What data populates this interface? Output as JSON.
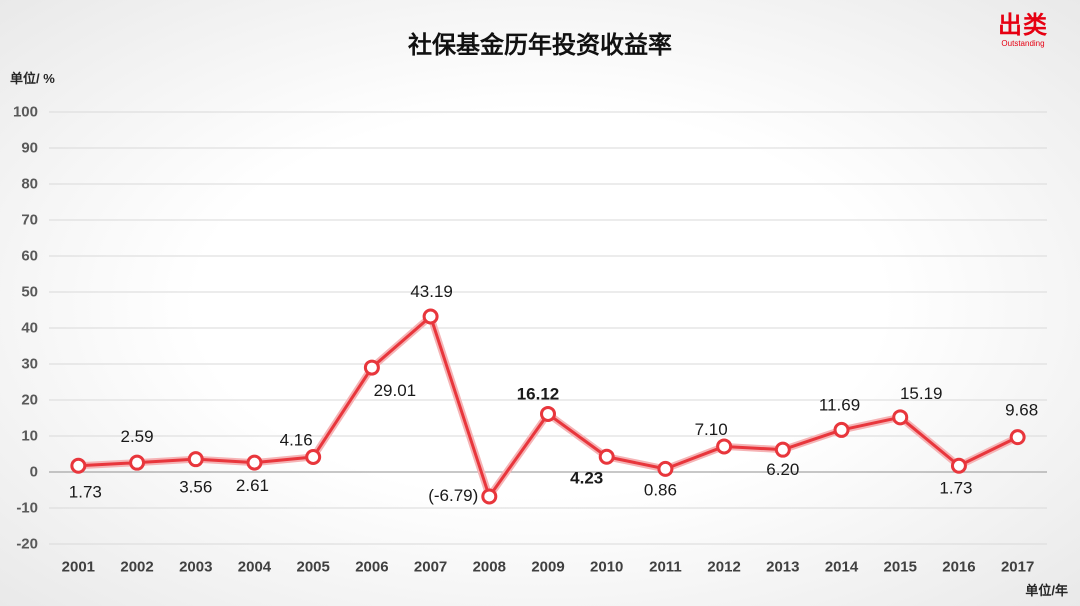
{
  "logo": {
    "text": "出类",
    "subtext": "Outstanding",
    "color": "#e60012"
  },
  "chart_data": {
    "type": "line",
    "title": "社保基金历年投资收益率",
    "ylabel": "单位/ %",
    "xlabel": "单位/年",
    "categories": [
      "2001",
      "2002",
      "2003",
      "2004",
      "2005",
      "2006",
      "2007",
      "2008",
      "2009",
      "2010",
      "2011",
      "2012",
      "2013",
      "2014",
      "2015",
      "2016",
      "2017"
    ],
    "series": [
      {
        "values": [
          1.73,
          2.59,
          3.56,
          2.61,
          4.16,
          29.01,
          43.19,
          -6.79,
          16.12,
          4.23,
          0.86,
          7.1,
          6.2,
          11.69,
          15.19,
          1.73,
          9.68
        ],
        "color": "#e8363c"
      }
    ],
    "data_labels": [
      "1.73",
      "2.59",
      "3.56",
      "2.61",
      "4.16",
      "29.01",
      "43.19",
      "(-6.79)",
      "16.12",
      "4.23",
      "0.86",
      "7.10",
      "6.20",
      "11.69",
      "15.19",
      "1.73",
      "9.68"
    ],
    "ylim": [
      -20,
      100
    ],
    "yticks": [
      100,
      90,
      80,
      70,
      60,
      50,
      40,
      30,
      20,
      10,
      0,
      -10,
      -20
    ],
    "grid": true,
    "marker_fill": "#ffffff"
  }
}
